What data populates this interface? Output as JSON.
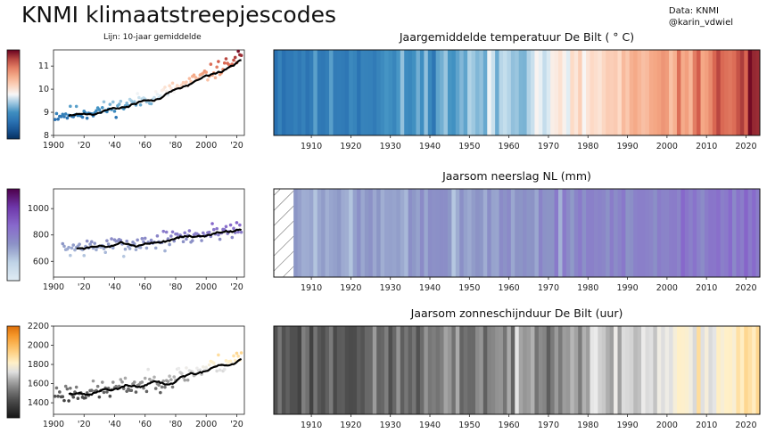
{
  "header": {
    "title": "KNMI klimaatstreepjescodes",
    "credit_line1": "Data: KNMI",
    "credit_line2": "@karin_vdwiel",
    "line_note": "Lijn: 10-jaar gemiddelde"
  },
  "chart_data": [
    {
      "type": "stripes+scatter",
      "title": "Jaargemiddelde temperatuur De Bilt ( ° C)",
      "colormap": "RdBu_r",
      "years": [
        1901,
        2023
      ],
      "stripe_xticks": [
        1910,
        1920,
        1930,
        1940,
        1950,
        1960,
        1970,
        1980,
        1990,
        2000,
        2010,
        2020
      ],
      "scatter_xticks": [
        "1900",
        "'20",
        "'40",
        "'60",
        "'80",
        "2000",
        "'20"
      ],
      "ylim": [
        8,
        11.7
      ],
      "yticks": [
        8,
        9,
        10,
        11
      ],
      "colorbar_range": [
        8,
        11.7
      ],
      "trend": "warming",
      "start_value": 8.9,
      "end_value": 11.4,
      "noise": 0.5,
      "seed": 11
    },
    {
      "type": "stripes+scatter",
      "title": "Jaarsom neerslag NL (mm)",
      "colormap": "BuPu",
      "years": [
        1901,
        2023
      ],
      "missing_before": 1906,
      "stripe_xticks": [
        1910,
        1920,
        1930,
        1940,
        1950,
        1960,
        1970,
        1980,
        1990,
        2000,
        2010,
        2020
      ],
      "scatter_xticks": [
        "1900",
        "'20",
        "'40",
        "'60",
        "'80",
        "2000",
        "'20"
      ],
      "ylim": [
        480,
        1150
      ],
      "yticks": [
        600,
        800,
        1000
      ],
      "colorbar_range": [
        480,
        1150
      ],
      "trend": "wetter",
      "start_value": 700,
      "end_value": 860,
      "noise": 105,
      "seed": 7
    },
    {
      "type": "stripes+scatter",
      "title": "Jaarsom zonneschijnduur De Bilt (uur)",
      "colormap": "gray-orange",
      "years": [
        1901,
        2023
      ],
      "stripe_xticks": [
        1910,
        1920,
        1930,
        1940,
        1950,
        1960,
        1970,
        1980,
        1990,
        2000,
        2010,
        2020
      ],
      "scatter_xticks": [
        "1900",
        "'20",
        "'40",
        "'60",
        "'80",
        "2000",
        "'20"
      ],
      "ylim": [
        1280,
        2200
      ],
      "yticks": [
        1400,
        1600,
        1800,
        2000,
        2200
      ],
      "colorbar_range": [
        1280,
        2200
      ],
      "trend": "sunnier",
      "start_value": 1500,
      "end_value": 1880,
      "noise": 150,
      "seed": 23
    }
  ]
}
